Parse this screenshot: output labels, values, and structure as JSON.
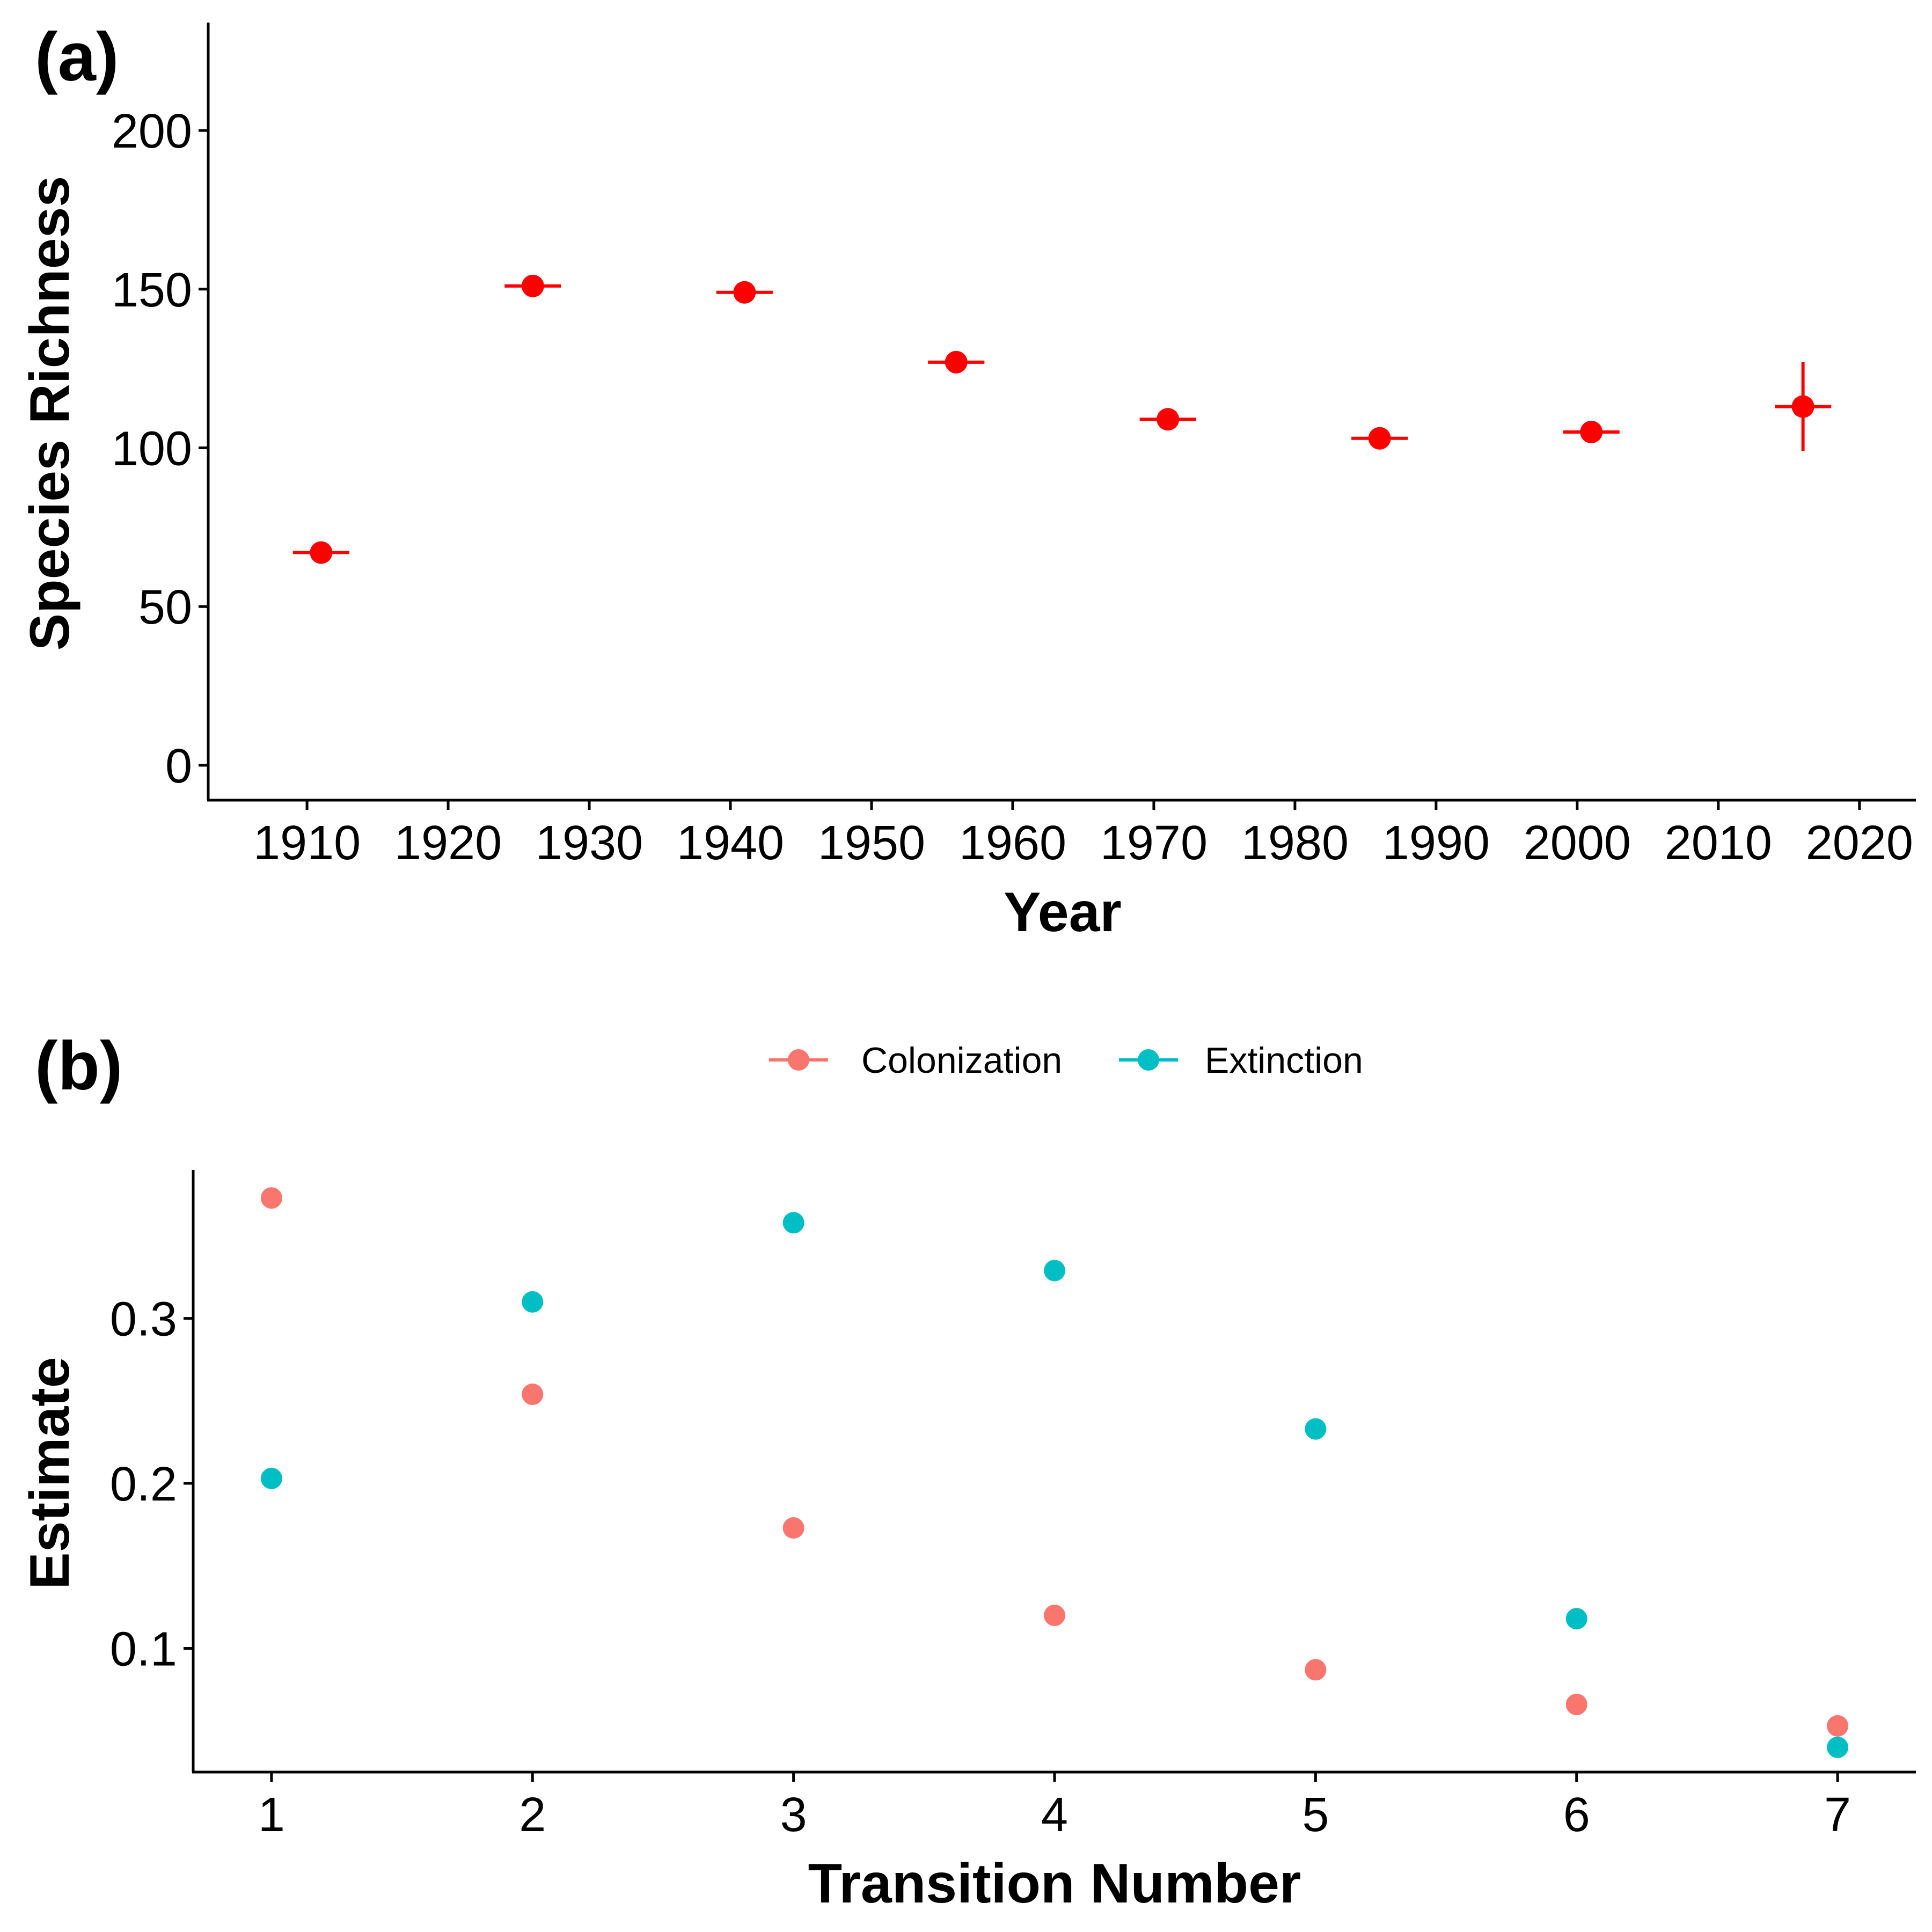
{
  "chart_data": [
    {
      "panel": "(a)",
      "type": "scatter",
      "xlabel": "Year",
      "ylabel": "Species Richness",
      "xlim": [
        1903,
        2024
      ],
      "ylim": [
        -11,
        234
      ],
      "xticks": [
        1910,
        1920,
        1930,
        1940,
        1950,
        1960,
        1970,
        1980,
        1990,
        2000,
        2010,
        2020
      ],
      "yticks": [
        0,
        50,
        100,
        150,
        200
      ],
      "grid": false,
      "legend": "none",
      "colors": {
        "points": "#ff0000"
      },
      "series": [
        {
          "points": [
            {
              "x": 1911,
              "y": 67,
              "xerr": [
                1909,
                1913
              ],
              "yerr": [
                67,
                67
              ]
            },
            {
              "x": 1926,
              "y": 151,
              "xerr": [
                1924,
                1928
              ],
              "yerr": [
                151,
                151
              ]
            },
            {
              "x": 1941,
              "y": 149,
              "xerr": [
                1939,
                1943
              ],
              "yerr": [
                149,
                149
              ]
            },
            {
              "x": 1956,
              "y": 127,
              "xerr": [
                1954,
                1958
              ],
              "yerr": [
                127,
                127
              ]
            },
            {
              "x": 1971,
              "y": 109,
              "xerr": [
                1969,
                1973
              ],
              "yerr": [
                109,
                109
              ]
            },
            {
              "x": 1986,
              "y": 103,
              "xerr": [
                1984,
                1988
              ],
              "yerr": [
                103,
                103
              ]
            },
            {
              "x": 2001,
              "y": 105,
              "xerr": [
                1999,
                2003
              ],
              "yerr": [
                105,
                105
              ]
            },
            {
              "x": 2016,
              "y": 113,
              "xerr": [
                2014,
                2018
              ],
              "yerr": [
                99,
                127
              ]
            }
          ]
        }
      ]
    },
    {
      "panel": "(b)",
      "type": "scatter",
      "xlabel": "Transition Number",
      "ylabel": "Estimate",
      "xlim": [
        0.7,
        7.3
      ],
      "ylim": [
        0.025,
        0.39
      ],
      "xticks": [
        1,
        2,
        3,
        4,
        5,
        6,
        7
      ],
      "yticks": [
        "0.1",
        "0.2",
        "0.3"
      ],
      "grid": false,
      "legend": "top-center",
      "x": [
        1,
        2,
        3,
        4,
        5,
        6,
        7
      ],
      "series": [
        {
          "name": "Colonization",
          "color": "#f8766d",
          "values": [
            0.373,
            0.254,
            0.173,
            0.12,
            0.087,
            0.066,
            0.053
          ]
        },
        {
          "name": "Extinction",
          "color": "#00bfc4",
          "values": [
            0.203,
            0.31,
            0.358,
            0.329,
            0.233,
            0.118,
            0.04
          ]
        }
      ]
    }
  ]
}
